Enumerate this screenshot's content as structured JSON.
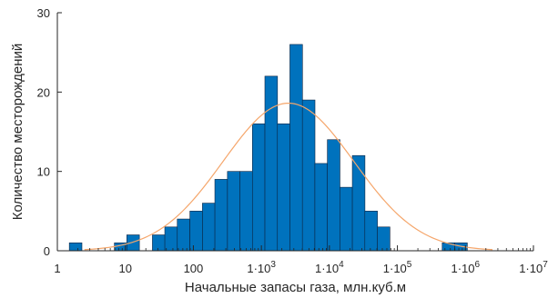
{
  "chart_data": {
    "type": "bar",
    "subtype": "histogram",
    "title": "",
    "xlabel": "Начальные  запасы газа, млн.куб.м",
    "ylabel": "Количество месторождений",
    "x_scale": "log",
    "xlim": [
      1,
      10000000
    ],
    "ylim": [
      0,
      30
    ],
    "x_tick_values": [
      1,
      10,
      100,
      1000,
      10000,
      100000,
      1000000,
      10000000
    ],
    "x_tick_labels": [
      {
        "base": "1",
        "exp": ""
      },
      {
        "base": "10",
        "exp": ""
      },
      {
        "base": "100",
        "exp": ""
      },
      {
        "base": "1·10",
        "exp": "3"
      },
      {
        "base": "1·10",
        "exp": "4"
      },
      {
        "base": "1·10",
        "exp": "5"
      },
      {
        "base": "1·10",
        "exp": "6"
      },
      {
        "base": "1·10",
        "exp": "7"
      }
    ],
    "y_ticks": [
      0,
      10,
      20,
      30
    ],
    "bin_width_decades": 0.1852,
    "bins": [
      {
        "start": 1.5,
        "count": 1
      },
      {
        "start": 6.9,
        "count": 1
      },
      {
        "start": 10.5,
        "count": 2
      },
      {
        "start": 25,
        "count": 2
      },
      {
        "start": 38,
        "count": 3
      },
      {
        "start": 58,
        "count": 4
      },
      {
        "start": 89,
        "count": 5
      },
      {
        "start": 136,
        "count": 6
      },
      {
        "start": 207,
        "count": 9
      },
      {
        "start": 317,
        "count": 10
      },
      {
        "start": 484,
        "count": 10
      },
      {
        "start": 738,
        "count": 16
      },
      {
        "start": 1126,
        "count": 22
      },
      {
        "start": 1720,
        "count": 16
      },
      {
        "start": 2625,
        "count": 26
      },
      {
        "start": 4006,
        "count": 19
      },
      {
        "start": 6115,
        "count": 11
      },
      {
        "start": 9333,
        "count": 14
      },
      {
        "start": 14246,
        "count": 8
      },
      {
        "start": 21744,
        "count": 12
      },
      {
        "start": 33187,
        "count": 5
      },
      {
        "start": 50654,
        "count": 3
      },
      {
        "start": 456000,
        "count": 1
      },
      {
        "start": 696000,
        "count": 1
      }
    ],
    "fit_curve": {
      "type": "lognormal",
      "peak_x": 2500,
      "peak_y": 18.6,
      "sigma_decades": 0.96,
      "x_range": [
        2.5,
        2500000
      ]
    },
    "colors": {
      "bars": "#0072BD",
      "bar_edge": "#0c2340",
      "curve": "#F5A66B",
      "axis": "#262626"
    },
    "grid": false,
    "legend": "none"
  }
}
